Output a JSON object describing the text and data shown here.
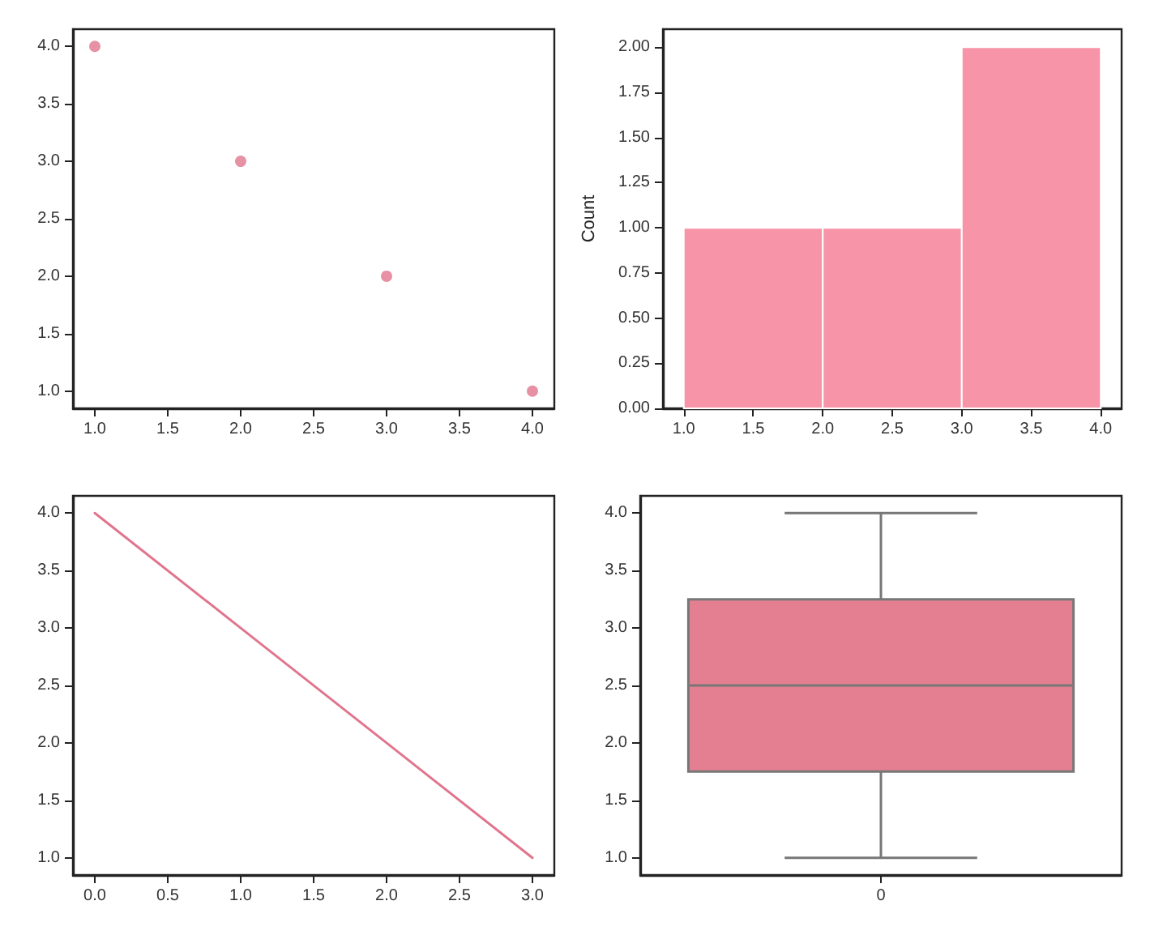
{
  "chart_data": [
    {
      "type": "scatter",
      "x": [
        1,
        2,
        3,
        4
      ],
      "values": [
        4,
        3,
        2,
        1
      ],
      "color": "#e0758d",
      "marker": "circle",
      "grid": false,
      "xlim": [
        0.85,
        4.15
      ],
      "ylim": [
        0.85,
        4.15
      ],
      "xticks": [
        {
          "value": 1,
          "label": "1.0"
        },
        {
          "value": 1.5,
          "label": "1.5"
        },
        {
          "value": 2,
          "label": "2.0"
        },
        {
          "value": 2.5,
          "label": "2.5"
        },
        {
          "value": 3,
          "label": "3.0"
        },
        {
          "value": 3.5,
          "label": "3.5"
        },
        {
          "value": 4,
          "label": "4.0"
        }
      ],
      "yticks": [
        {
          "value": 1,
          "label": "1.0"
        },
        {
          "value": 1.5,
          "label": "1.5"
        },
        {
          "value": 2,
          "label": "2.0"
        },
        {
          "value": 2.5,
          "label": "2.5"
        },
        {
          "value": 3,
          "label": "3.0"
        },
        {
          "value": 3.5,
          "label": "3.5"
        },
        {
          "value": 4,
          "label": "4.0"
        }
      ]
    },
    {
      "type": "histogram",
      "ylabel": "Count",
      "bins": [
        1,
        2,
        3,
        4
      ],
      "values": [
        1,
        1,
        2
      ],
      "color": "#f794a7",
      "grid": false,
      "xlim": [
        0.85,
        4.15
      ],
      "ylim": [
        0,
        2.1
      ],
      "xticks": [
        {
          "value": 1,
          "label": "1.0"
        },
        {
          "value": 1.5,
          "label": "1.5"
        },
        {
          "value": 2,
          "label": "2.0"
        },
        {
          "value": 2.5,
          "label": "2.5"
        },
        {
          "value": 3,
          "label": "3.0"
        },
        {
          "value": 3.5,
          "label": "3.5"
        },
        {
          "value": 4,
          "label": "4.0"
        }
      ],
      "yticks": [
        {
          "value": 0,
          "label": "0.00"
        },
        {
          "value": 0.25,
          "label": "0.25"
        },
        {
          "value": 0.5,
          "label": "0.50"
        },
        {
          "value": 0.75,
          "label": "0.75"
        },
        {
          "value": 1,
          "label": "1.00"
        },
        {
          "value": 1.25,
          "label": "1.25"
        },
        {
          "value": 1.5,
          "label": "1.50"
        },
        {
          "value": 1.75,
          "label": "1.75"
        },
        {
          "value": 2,
          "label": "2.00"
        }
      ]
    },
    {
      "type": "line",
      "x": [
        0,
        1,
        2,
        3
      ],
      "values": [
        4,
        3,
        2,
        1
      ],
      "color": "#e0758d",
      "marker": "none",
      "line_style": "solid",
      "grid": false,
      "xlim": [
        -0.15,
        3.15
      ],
      "ylim": [
        0.85,
        4.15
      ],
      "xticks": [
        {
          "value": 0,
          "label": "0.0"
        },
        {
          "value": 0.5,
          "label": "0.5"
        },
        {
          "value": 1,
          "label": "1.0"
        },
        {
          "value": 1.5,
          "label": "1.5"
        },
        {
          "value": 2,
          "label": "2.0"
        },
        {
          "value": 2.5,
          "label": "2.5"
        },
        {
          "value": 3,
          "label": "3.0"
        }
      ],
      "yticks": [
        {
          "value": 1,
          "label": "1.0"
        },
        {
          "value": 1.5,
          "label": "1.5"
        },
        {
          "value": 2,
          "label": "2.0"
        },
        {
          "value": 2.5,
          "label": "2.5"
        },
        {
          "value": 3,
          "label": "3.0"
        },
        {
          "value": 3.5,
          "label": "3.5"
        },
        {
          "value": 4,
          "label": "4.0"
        }
      ]
    },
    {
      "type": "box",
      "categories": [
        "0"
      ],
      "boxes": [
        {
          "low": 1,
          "q1": 1.75,
          "median": 2.5,
          "q3": 3.25,
          "high": 4
        }
      ],
      "color": "#e37f91",
      "grid": false,
      "ylim": [
        0.85,
        4.15
      ],
      "yticks": [
        {
          "value": 1,
          "label": "1.0"
        },
        {
          "value": 1.5,
          "label": "1.5"
        },
        {
          "value": 2,
          "label": "2.0"
        },
        {
          "value": 2.5,
          "label": "2.5"
        },
        {
          "value": 3,
          "label": "3.0"
        },
        {
          "value": 3.5,
          "label": "3.5"
        },
        {
          "value": 4,
          "label": "4.0"
        }
      ]
    }
  ]
}
